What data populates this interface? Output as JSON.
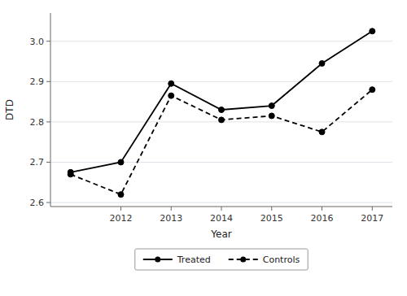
{
  "chart_data": {
    "type": "line",
    "x": [
      2011,
      2012,
      2013,
      2014,
      2015,
      2016,
      2017
    ],
    "series": [
      {
        "name": "Treated",
        "color": "#000000",
        "line_style": "solid",
        "marker": "circle",
        "values": [
          2.675,
          2.7,
          2.895,
          2.83,
          2.84,
          2.945,
          3.025
        ]
      },
      {
        "name": "Controls",
        "color": "#000000",
        "line_style": "dashed",
        "marker": "circle",
        "values": [
          2.67,
          2.62,
          2.865,
          2.805,
          2.815,
          2.775,
          2.88
        ]
      }
    ],
    "x_label": "Year",
    "y_label": "DTD",
    "xlim": [
      2010.6,
      2017.4
    ],
    "xticks": [
      2012,
      2013,
      2014,
      2015,
      2016,
      2017
    ],
    "ylim": [
      2.59,
      3.07
    ],
    "yticks": [
      2.6,
      2.7,
      2.8,
      2.9,
      {
        "value": 3.0,
        "label": "3.0"
      }
    ],
    "grid": true,
    "legend": "bottom"
  }
}
